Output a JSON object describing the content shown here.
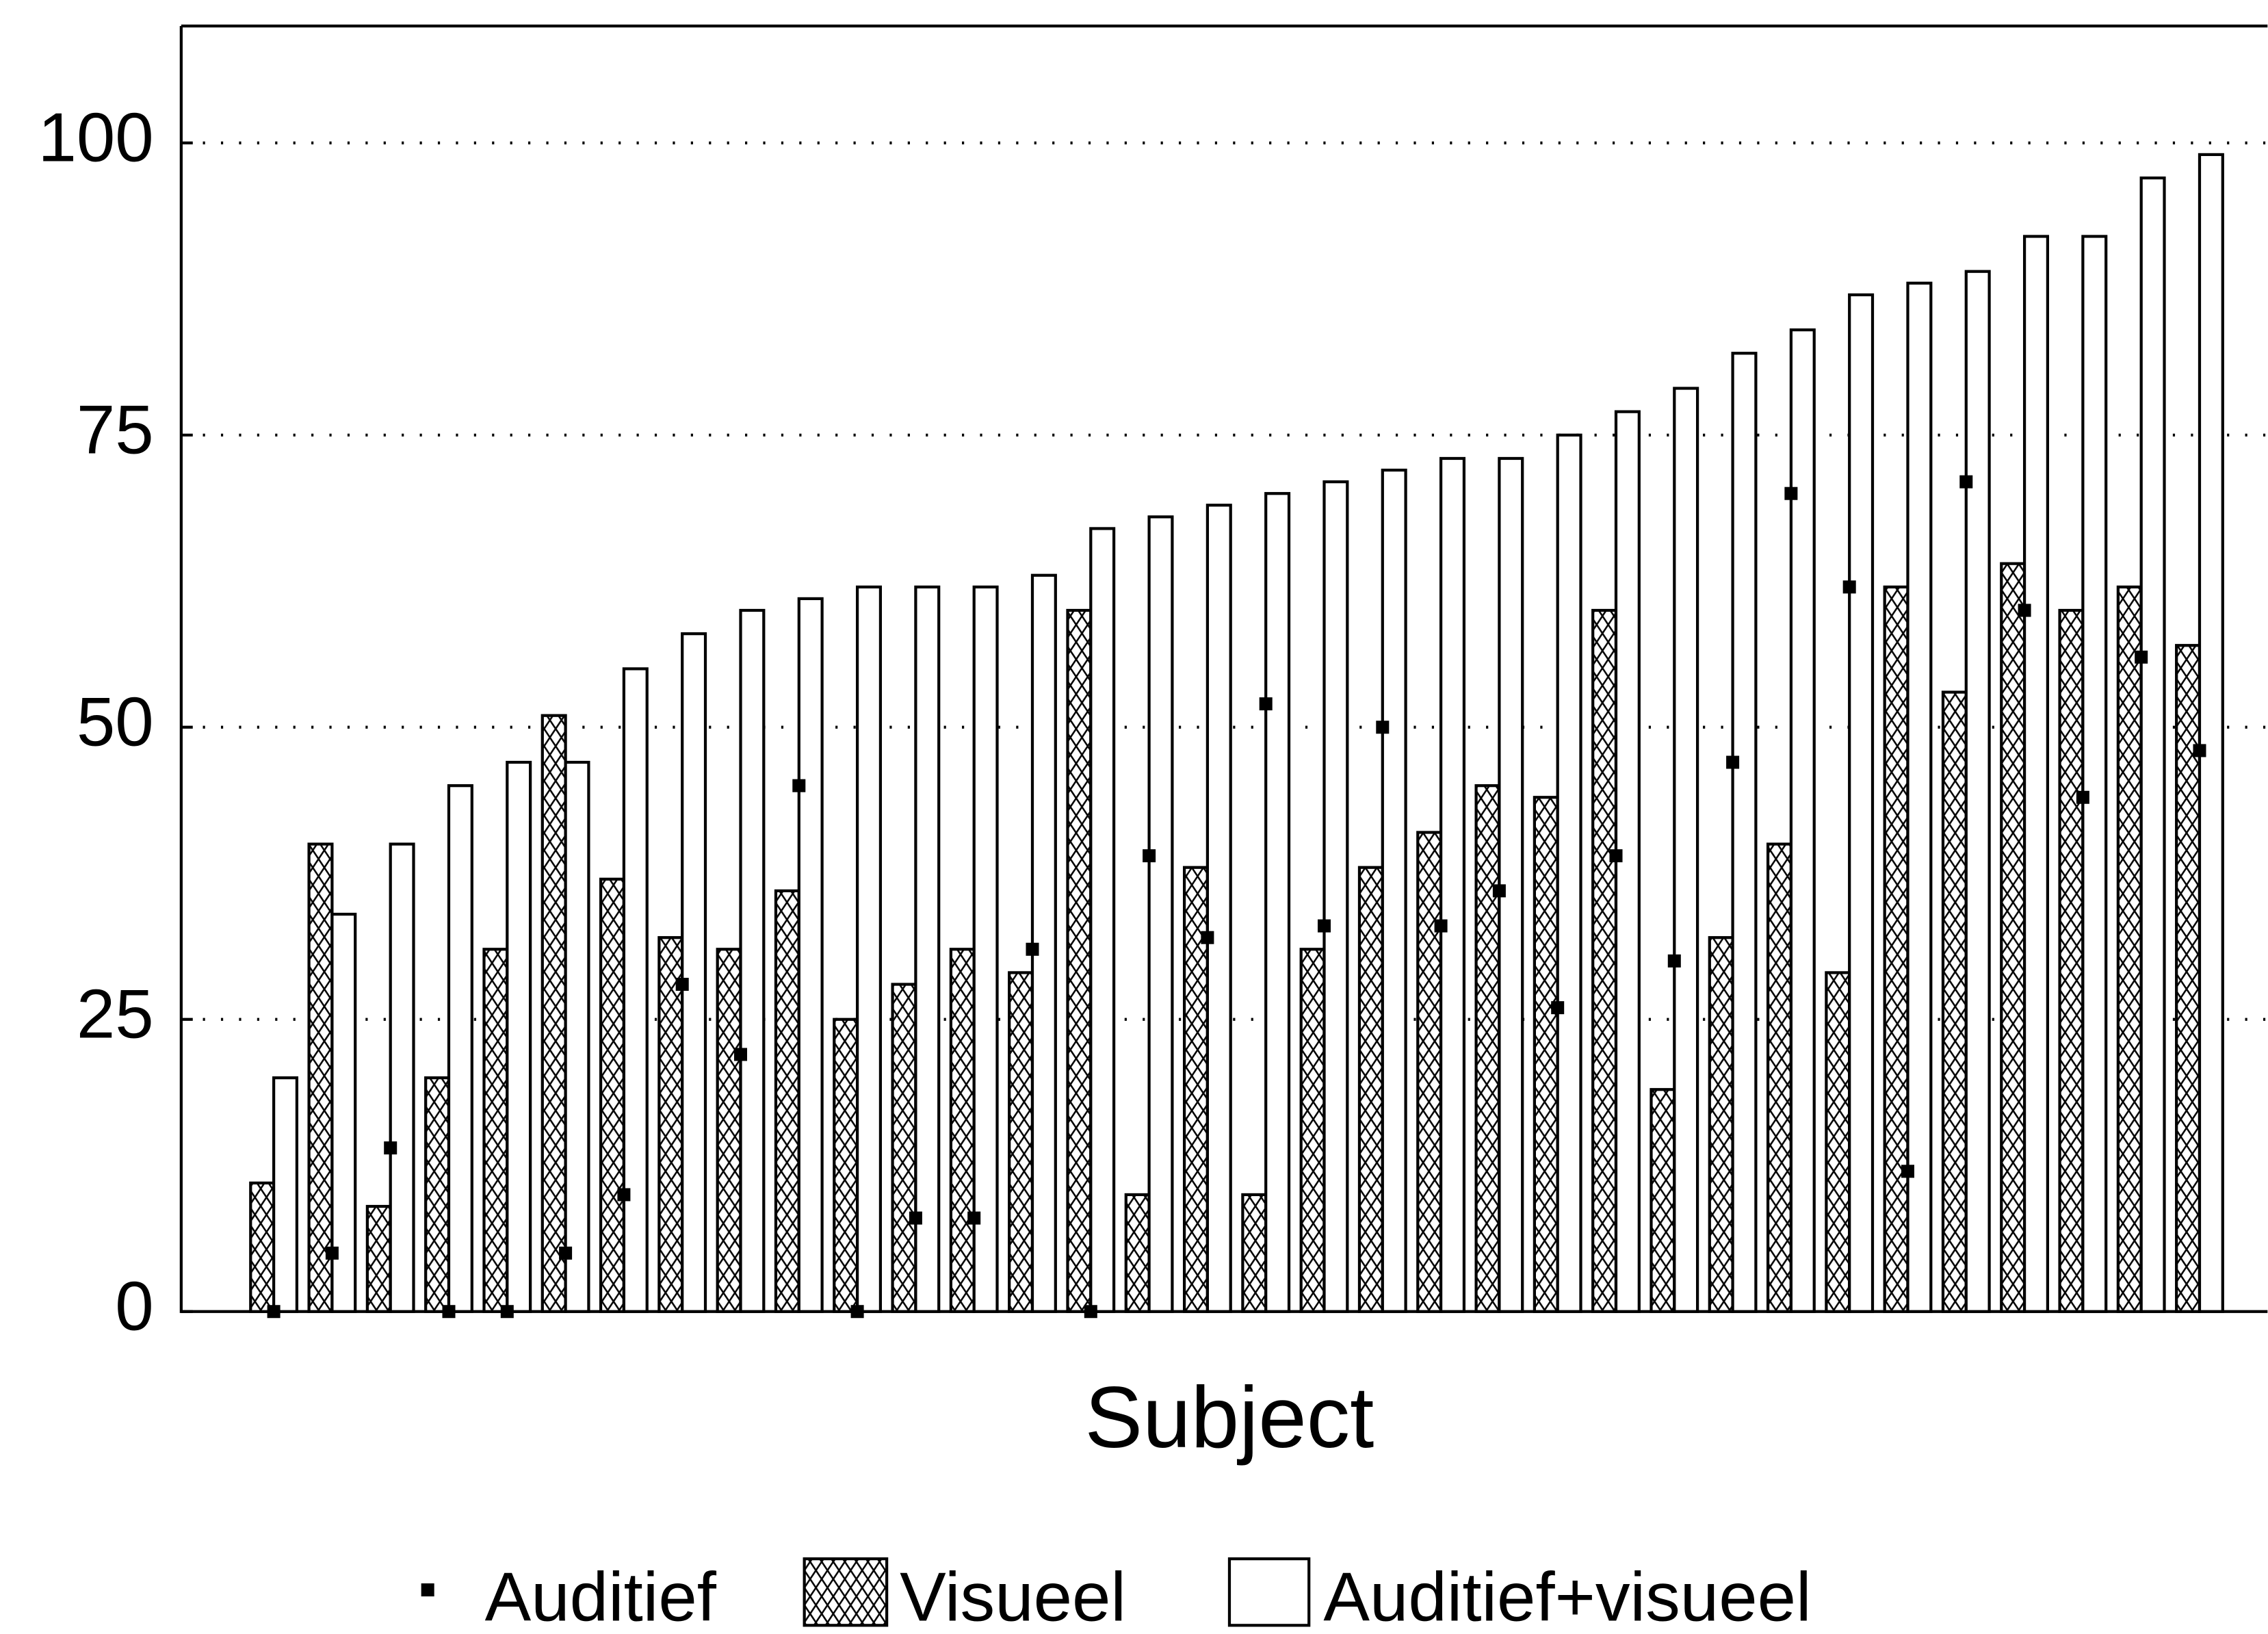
{
  "chart_data": {
    "type": "bar",
    "xlabel": "Subject",
    "categories": [
      null,
      null,
      null,
      null,
      null,
      null,
      null,
      null,
      null,
      null,
      null,
      null,
      null,
      null,
      null,
      null,
      null,
      null,
      null,
      null,
      null,
      null,
      null,
      null,
      null,
      null,
      null,
      null,
      null,
      null,
      null,
      null,
      null,
      null
    ],
    "series": [
      {
        "name": "Auditief",
        "color": "#000000",
        "values": [
          0,
          5,
          14,
          0,
          0,
          5,
          10,
          28,
          22,
          45,
          0,
          8,
          8,
          31,
          0,
          39,
          32,
          52,
          33,
          50,
          33,
          36,
          26,
          39,
          30,
          47,
          70,
          62,
          12,
          71,
          60,
          44,
          56,
          48
        ]
      },
      {
        "name": "Visueel",
        "color": "#000000",
        "values": [
          11,
          40,
          9,
          20,
          31,
          51,
          37,
          32,
          31,
          36,
          25,
          28,
          31,
          29,
          60,
          10,
          38,
          10,
          31,
          38,
          41,
          45,
          44,
          60,
          19,
          32,
          40,
          29,
          62,
          53,
          64,
          60,
          62,
          57
        ]
      },
      {
        "name": "Auditief+visueel",
        "color": "#ffffff",
        "values": [
          20,
          34,
          40,
          45,
          47,
          47,
          55,
          58,
          60,
          61,
          62,
          62,
          62,
          63,
          67,
          68,
          69,
          70,
          71,
          72,
          73,
          73,
          75,
          77,
          79,
          82,
          84,
          87,
          88,
          89,
          92,
          92,
          97,
          99
        ]
      }
    ],
    "ylim": [
      0,
      110
    ],
    "yticks": [
      0,
      25,
      50,
      75,
      100
    ],
    "grid": true,
    "legend": "bottom"
  }
}
